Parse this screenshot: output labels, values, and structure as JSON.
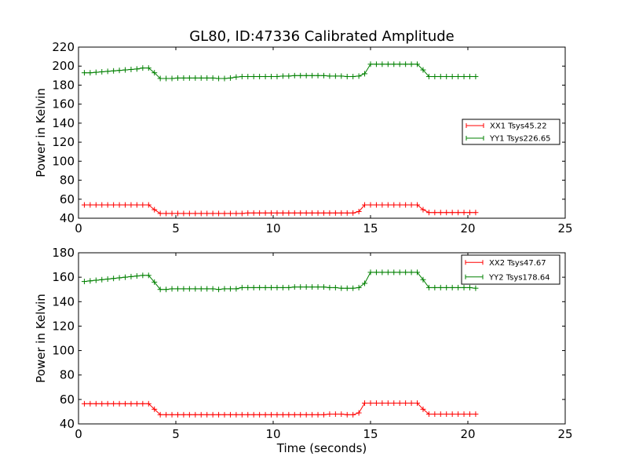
{
  "figure": {
    "title": "GL80, ID:47336 Calibrated Amplitude",
    "xlabel": "Time (seconds)"
  },
  "chart_data": [
    {
      "type": "line",
      "ylabel": "Power in Kelvin",
      "xlim": [
        0,
        25
      ],
      "ylim": [
        40,
        220
      ],
      "xticks": [
        0,
        5,
        10,
        15,
        20,
        25
      ],
      "yticks": [
        40,
        60,
        80,
        100,
        120,
        140,
        160,
        180,
        200,
        220
      ],
      "grid": false,
      "legend_position": "right",
      "x": [
        0.3,
        0.6,
        0.9,
        1.2,
        1.5,
        1.8,
        2.1,
        2.4,
        2.7,
        3.0,
        3.3,
        3.6,
        3.9,
        4.2,
        4.5,
        4.8,
        5.1,
        5.4,
        5.7,
        6.0,
        6.3,
        6.6,
        6.9,
        7.2,
        7.5,
        7.8,
        8.1,
        8.4,
        8.7,
        9.0,
        9.3,
        9.6,
        9.9,
        10.2,
        10.5,
        10.8,
        11.1,
        11.4,
        11.7,
        12.0,
        12.3,
        12.6,
        12.9,
        13.2,
        13.5,
        13.8,
        14.1,
        14.4,
        14.7,
        15.0,
        15.3,
        15.6,
        15.9,
        16.2,
        16.5,
        16.8,
        17.1,
        17.4,
        17.7,
        18.0,
        18.3,
        18.6,
        18.9,
        19.2,
        19.5,
        19.8,
        20.1,
        20.4
      ],
      "series": [
        {
          "name": "XX1 Tsys45.22",
          "color": "#ff0000",
          "values": [
            54,
            54,
            54,
            54,
            54,
            54,
            54,
            54,
            54,
            54,
            54,
            54,
            49,
            45,
            45,
            45,
            45,
            45,
            45,
            45,
            45,
            45,
            45,
            45,
            45,
            45,
            45,
            45,
            45.5,
            45.5,
            45.5,
            45.5,
            45.5,
            45.5,
            45.5,
            45.5,
            45.5,
            45.5,
            45.5,
            45.5,
            45.5,
            45.5,
            45.5,
            45.5,
            45.5,
            45.5,
            45.5,
            47,
            54,
            54,
            54,
            54,
            54,
            54,
            54,
            54,
            54,
            54,
            49,
            46,
            46,
            46,
            46,
            46,
            46,
            46,
            46,
            46
          ]
        },
        {
          "name": "YY1 Tsys226.65",
          "color": "#008000",
          "values": [
            193,
            193,
            193.5,
            194,
            194.5,
            195,
            195.5,
            196,
            196.5,
            197,
            198,
            198,
            193,
            187,
            187,
            187,
            187.5,
            187.5,
            187.5,
            187.5,
            187.5,
            187.5,
            187.5,
            187,
            187,
            187.5,
            188.5,
            189,
            189,
            189,
            189,
            189,
            189,
            189,
            189.5,
            189.5,
            190,
            190,
            190,
            190,
            190,
            190,
            189.5,
            189.5,
            189.5,
            189,
            189,
            189.5,
            192,
            202,
            202,
            202,
            202,
            202,
            202,
            202,
            202,
            202,
            196,
            189,
            189,
            189,
            189,
            189,
            189,
            189,
            189,
            189
          ]
        }
      ]
    },
    {
      "type": "line",
      "ylabel": "Power in Kelvin",
      "xlabel": "Time (seconds)",
      "xlim": [
        0,
        25
      ],
      "ylim": [
        40,
        180
      ],
      "xticks": [
        0,
        5,
        10,
        15,
        20,
        25
      ],
      "yticks": [
        40,
        60,
        80,
        100,
        120,
        140,
        160,
        180
      ],
      "grid": false,
      "legend_position": "top-right",
      "x": [
        0.3,
        0.6,
        0.9,
        1.2,
        1.5,
        1.8,
        2.1,
        2.4,
        2.7,
        3.0,
        3.3,
        3.6,
        3.9,
        4.2,
        4.5,
        4.8,
        5.1,
        5.4,
        5.7,
        6.0,
        6.3,
        6.6,
        6.9,
        7.2,
        7.5,
        7.8,
        8.1,
        8.4,
        8.7,
        9.0,
        9.3,
        9.6,
        9.9,
        10.2,
        10.5,
        10.8,
        11.1,
        11.4,
        11.7,
        12.0,
        12.3,
        12.6,
        12.9,
        13.2,
        13.5,
        13.8,
        14.1,
        14.4,
        14.7,
        15.0,
        15.3,
        15.6,
        15.9,
        16.2,
        16.5,
        16.8,
        17.1,
        17.4,
        17.7,
        18.0,
        18.3,
        18.6,
        18.9,
        19.2,
        19.5,
        19.8,
        20.1,
        20.4
      ],
      "series": [
        {
          "name": "XX2 Tsys47.67",
          "color": "#ff0000",
          "values": [
            56.5,
            56.5,
            56.5,
            56.5,
            56.5,
            56.5,
            56.5,
            56.5,
            56.5,
            56.5,
            56.5,
            56.5,
            52,
            47.5,
            47.5,
            47.5,
            47.5,
            47.5,
            47.5,
            47.5,
            47.5,
            47.5,
            47.5,
            47.5,
            47.5,
            47.5,
            47.5,
            47.5,
            47.5,
            47.5,
            47.5,
            47.5,
            47.5,
            47.5,
            47.5,
            47.5,
            47.5,
            47.5,
            47.5,
            47.5,
            47.5,
            47.5,
            48,
            48,
            48,
            47.5,
            47.5,
            49,
            57,
            57,
            57,
            57,
            57,
            57,
            57,
            57,
            57,
            57,
            52,
            48,
            48,
            48,
            48,
            48,
            48,
            48,
            48,
            48
          ]
        },
        {
          "name": "YY2 Tsys178.64",
          "color": "#008000",
          "values": [
            156.5,
            157,
            157.5,
            158,
            158.5,
            159,
            159.5,
            160,
            160.5,
            161,
            161.5,
            161.5,
            156,
            150,
            150,
            150.5,
            150.5,
            150.5,
            150.5,
            150.5,
            150.5,
            150.5,
            150.5,
            150,
            150.5,
            150.5,
            150.5,
            151.5,
            151.5,
            151.5,
            151.5,
            151.5,
            151.5,
            151.5,
            151.5,
            151.5,
            152,
            152,
            152,
            152,
            152,
            152,
            151.5,
            151.5,
            151,
            151,
            151,
            151.5,
            155,
            164,
            164,
            164,
            164,
            164,
            164,
            164,
            164,
            164,
            158,
            151.5,
            151.5,
            151.5,
            151.5,
            151.5,
            151.5,
            151.5,
            151.5,
            151
          ]
        }
      ]
    }
  ]
}
